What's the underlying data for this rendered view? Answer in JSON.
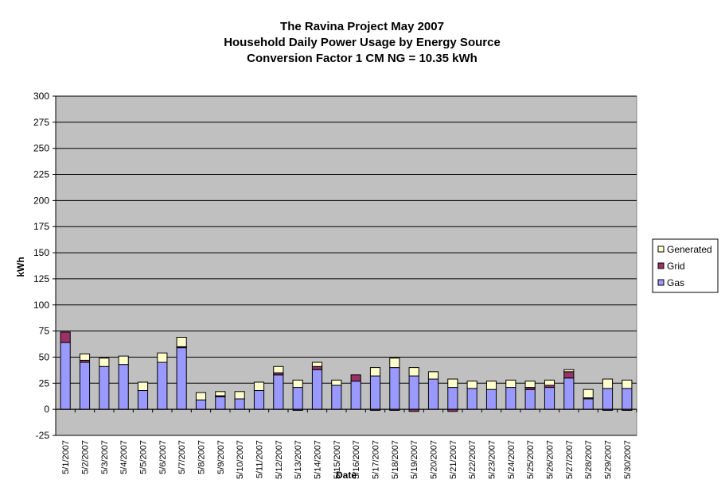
{
  "chart_data": {
    "type": "bar",
    "stacked": true,
    "title": [
      "The Ravina Project May 2007",
      "Household Daily Power Usage by Energy Source",
      "Conversion Factor 1 CM NG = 10.35 kWh"
    ],
    "xlabel": "Date",
    "ylabel": "kWh",
    "ylim": [
      -25,
      300
    ],
    "yticks": [
      -25,
      0,
      25,
      50,
      75,
      100,
      125,
      150,
      175,
      200,
      225,
      250,
      275,
      300
    ],
    "grid": true,
    "legend_position": "right",
    "background": "#c0c0c0",
    "categories": [
      "5/1/2007",
      "5/2/2007",
      "5/3/2007",
      "5/4/2007",
      "5/5/2007",
      "5/6/2007",
      "5/7/2007",
      "5/8/2007",
      "5/9/2007",
      "5/10/2007",
      "5/11/2007",
      "5/12/2007",
      "5/13/2007",
      "5/14/2007",
      "5/15/2007",
      "5/16/2007",
      "5/17/2007",
      "5/18/2007",
      "5/19/2007",
      "5/20/2007",
      "5/21/2007",
      "5/22/2007",
      "5/23/2007",
      "5/24/2007",
      "5/25/2007",
      "5/26/2007",
      "5/27/2007",
      "5/28/2007",
      "5/29/2007",
      "5/30/2007"
    ],
    "series": [
      {
        "name": "Gas",
        "color": "#9999ff",
        "values": [
          64,
          45,
          41,
          43,
          18,
          45,
          59,
          9,
          12,
          10,
          18,
          33,
          21,
          38,
          23,
          27,
          32,
          40,
          32,
          29,
          21,
          20,
          19,
          21,
          19,
          21,
          30,
          10,
          20,
          20
        ]
      },
      {
        "name": "Grid",
        "color": "#993366",
        "values": [
          10,
          2,
          0,
          0,
          0,
          0,
          1,
          0,
          1,
          0,
          0,
          2,
          -1,
          3,
          0,
          6,
          -1,
          -1,
          -2,
          0,
          -2,
          0,
          0,
          0,
          2,
          2,
          6,
          1,
          -1,
          -1
        ]
      },
      {
        "name": "Generated",
        "color": "#ffffcc",
        "values": [
          0,
          6,
          8,
          8,
          8,
          9,
          9,
          7,
          4,
          7,
          8,
          6,
          7,
          4,
          5,
          0,
          8,
          9,
          8,
          7,
          8,
          7,
          8,
          7,
          6,
          5,
          2,
          8,
          9,
          8
        ]
      }
    ]
  }
}
